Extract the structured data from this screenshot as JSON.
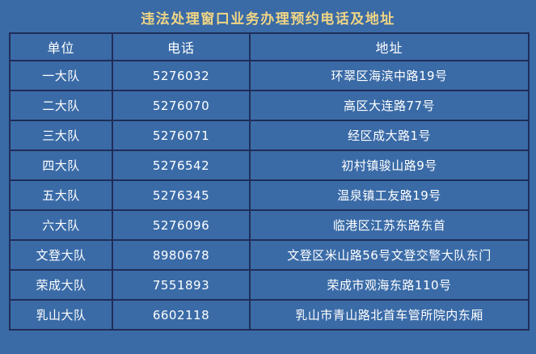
{
  "page": {
    "background_color": "#3a6ba7",
    "border_color": "#1f2d59",
    "title_color": "#f0d584",
    "text_color": "#ffffff"
  },
  "title": "违法处理窗口业务办理预约电话及地址",
  "table": {
    "headers": [
      "单位",
      "电话",
      "地址"
    ],
    "rows": [
      {
        "unit": "一大队",
        "phone": "5276032",
        "address": "环翠区海滨中路19号"
      },
      {
        "unit": "二大队",
        "phone": "5276070",
        "address": "高区大连路77号"
      },
      {
        "unit": "三大队",
        "phone": "5276071",
        "address": "经区成大路1号"
      },
      {
        "unit": "四大队",
        "phone": "5276542",
        "address": "初村镇骏山路9号"
      },
      {
        "unit": "五大队",
        "phone": "5276345",
        "address": "温泉镇工友路19号"
      },
      {
        "unit": "六大队",
        "phone": "5276096",
        "address": "临港区江苏东路东首"
      },
      {
        "unit": "文登大队",
        "phone": "8980678",
        "address": "文登区米山路56号文登交警大队东门"
      },
      {
        "unit": "荣成大队",
        "phone": "7551893",
        "address": "荣成市观海东路110号"
      },
      {
        "unit": "乳山大队",
        "phone": "6602118",
        "address": "乳山市青山路北首车管所院内东厢"
      }
    ]
  }
}
